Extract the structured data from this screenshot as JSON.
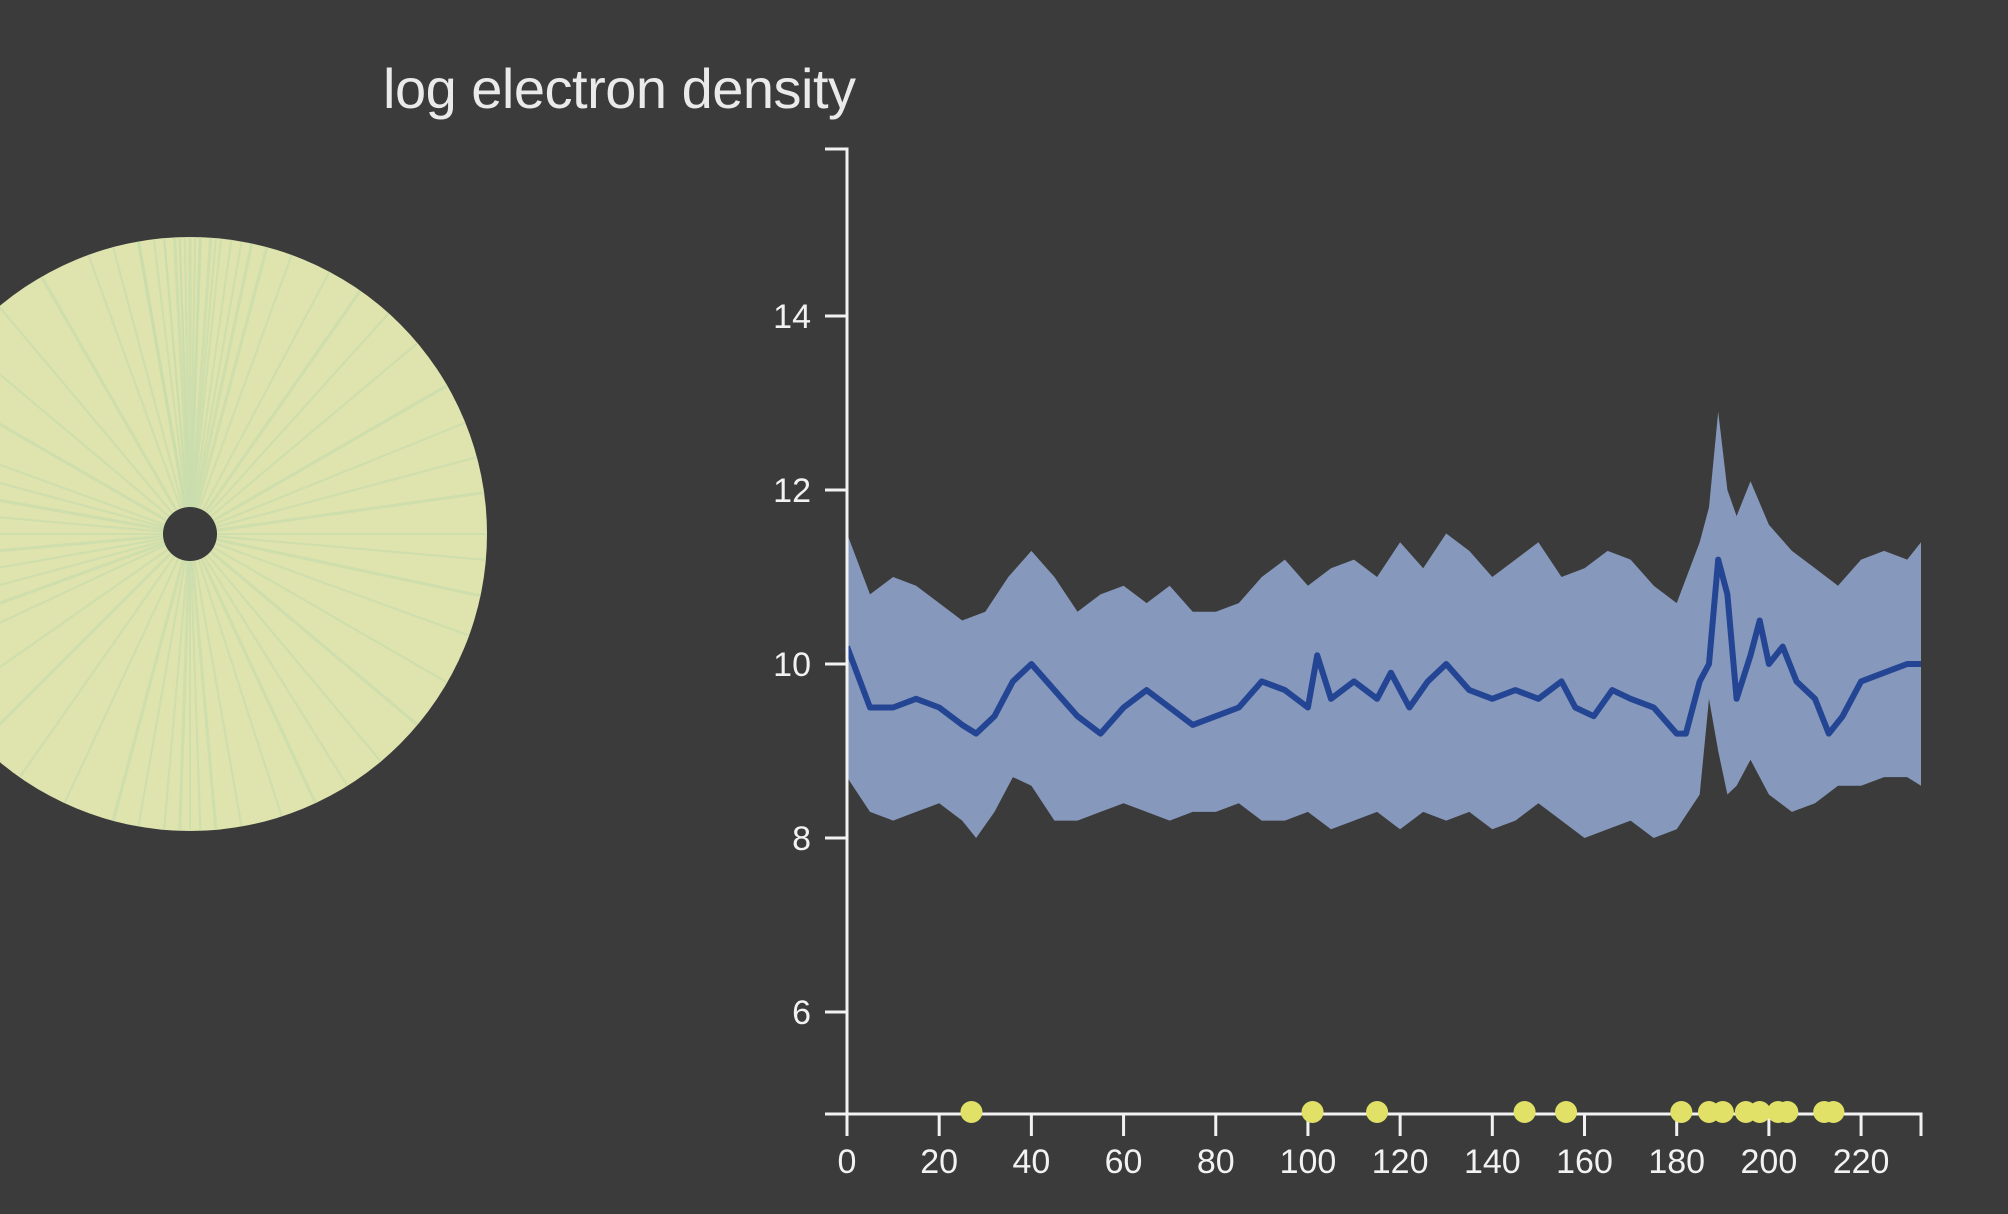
{
  "title": "log electron density",
  "colors": {
    "background": "#3b3b3b",
    "band": "#8699bc",
    "line": "#244594",
    "axis": "#f2f2f2",
    "disc": "#dfe3ad",
    "disc_rays": "#c8dcae",
    "markers": "#e2e167"
  },
  "chart_data": {
    "type": "line",
    "title": "log electron density",
    "xlabel": "",
    "ylabel": "",
    "xlim": [
      0,
      233
    ],
    "ylim": [
      4.8,
      15.8
    ],
    "grid": false,
    "x_ticks": [
      "0",
      "20",
      "40",
      "60",
      "80",
      "100",
      "120",
      "140",
      "160",
      "180",
      "200",
      "220"
    ],
    "y_ticks": [
      "6",
      "8",
      "10",
      "12",
      "14"
    ],
    "series": [
      {
        "role": "mean",
        "x": [
          0,
          5,
          10,
          15,
          20,
          25,
          28,
          32,
          36,
          40,
          45,
          50,
          55,
          60,
          65,
          70,
          75,
          80,
          85,
          90,
          95,
          100,
          102,
          105,
          110,
          115,
          118,
          122,
          126,
          130,
          135,
          140,
          145,
          150,
          155,
          158,
          162,
          166,
          170,
          175,
          180,
          182,
          185,
          187,
          189,
          191,
          193,
          196,
          198,
          200,
          203,
          206,
          210,
          213,
          216,
          220,
          225,
          230,
          233
        ],
        "y": [
          10.2,
          9.5,
          9.5,
          9.6,
          9.5,
          9.3,
          9.2,
          9.4,
          9.8,
          10.0,
          9.7,
          9.4,
          9.2,
          9.5,
          9.7,
          9.5,
          9.3,
          9.4,
          9.5,
          9.8,
          9.7,
          9.5,
          10.1,
          9.6,
          9.8,
          9.6,
          9.9,
          9.5,
          9.8,
          10.0,
          9.7,
          9.6,
          9.7,
          9.6,
          9.8,
          9.5,
          9.4,
          9.7,
          9.6,
          9.5,
          9.2,
          9.2,
          9.8,
          10.0,
          11.2,
          10.8,
          9.6,
          10.1,
          10.5,
          10.0,
          10.2,
          9.8,
          9.6,
          9.2,
          9.4,
          9.8,
          9.9,
          10.0,
          10.0
        ]
      },
      {
        "role": "upper",
        "x": [
          0,
          5,
          10,
          15,
          20,
          25,
          30,
          35,
          40,
          45,
          50,
          55,
          60,
          65,
          70,
          75,
          80,
          85,
          90,
          95,
          100,
          105,
          110,
          115,
          120,
          125,
          130,
          135,
          140,
          145,
          150,
          155,
          160,
          165,
          170,
          175,
          180,
          185,
          187,
          189,
          191,
          193,
          196,
          200,
          205,
          210,
          215,
          220,
          225,
          230,
          233
        ],
        "y": [
          11.5,
          10.8,
          11.0,
          10.9,
          10.7,
          10.5,
          10.6,
          11.0,
          11.3,
          11.0,
          10.6,
          10.8,
          10.9,
          10.7,
          10.9,
          10.6,
          10.6,
          10.7,
          11.0,
          11.2,
          10.9,
          11.1,
          11.2,
          11.0,
          11.4,
          11.1,
          11.5,
          11.3,
          11.0,
          11.2,
          11.4,
          11.0,
          11.1,
          11.3,
          11.2,
          10.9,
          10.7,
          11.4,
          11.8,
          12.9,
          12.0,
          11.7,
          12.1,
          11.6,
          11.3,
          11.1,
          10.9,
          11.2,
          11.3,
          11.2,
          11.4
        ]
      },
      {
        "role": "lower",
        "x": [
          0,
          5,
          10,
          15,
          20,
          25,
          28,
          32,
          36,
          40,
          45,
          50,
          55,
          60,
          65,
          70,
          75,
          80,
          85,
          90,
          95,
          100,
          105,
          110,
          115,
          120,
          125,
          130,
          135,
          140,
          145,
          150,
          155,
          160,
          165,
          170,
          175,
          180,
          185,
          187,
          189,
          191,
          193,
          196,
          200,
          205,
          210,
          215,
          220,
          225,
          230,
          233
        ],
        "y": [
          8.7,
          8.3,
          8.2,
          8.3,
          8.4,
          8.2,
          8.0,
          8.3,
          8.7,
          8.6,
          8.2,
          8.2,
          8.3,
          8.4,
          8.3,
          8.2,
          8.3,
          8.3,
          8.4,
          8.2,
          8.2,
          8.3,
          8.1,
          8.2,
          8.3,
          8.1,
          8.3,
          8.2,
          8.3,
          8.1,
          8.2,
          8.4,
          8.2,
          8.0,
          8.1,
          8.2,
          8.0,
          8.1,
          8.5,
          9.6,
          9.0,
          8.5,
          8.6,
          8.9,
          8.5,
          8.3,
          8.4,
          8.6,
          8.6,
          8.7,
          8.7,
          8.6
        ]
      }
    ],
    "markers_x": [
      27,
      101,
      115,
      147,
      156,
      181,
      187,
      190,
      195,
      198,
      202,
      204,
      212,
      214
    ]
  },
  "disc": {
    "ray_angles_deg": [
      -100,
      -97,
      -95,
      -93,
      -92,
      -91,
      -90,
      -89,
      -88,
      -86,
      -84,
      -80,
      -75,
      -70,
      -62,
      -55,
      -48,
      -40,
      -30,
      -22,
      -15,
      -8,
      0,
      5,
      12,
      20,
      30,
      40,
      50,
      58,
      65,
      72,
      80,
      85,
      88,
      90,
      92,
      95,
      100,
      105,
      115,
      125,
      135,
      145,
      155,
      160,
      165,
      170,
      175,
      180,
      185,
      190,
      195,
      200,
      210,
      220,
      230,
      240,
      250,
      255,
      260,
      265,
      268,
      272,
      275,
      278,
      282
    ]
  }
}
